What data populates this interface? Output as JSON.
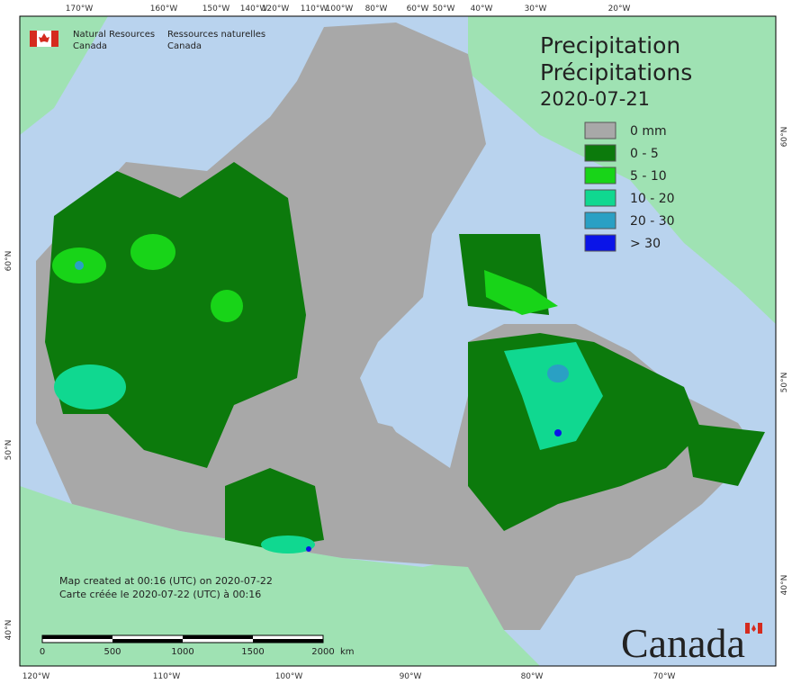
{
  "header": {
    "org_en": [
      "Natural Resources",
      "Canada"
    ],
    "org_fr": [
      "Ressources naturelles",
      "Canada"
    ]
  },
  "title": [
    "Precipitation",
    "Précipitations"
  ],
  "date": "2020-07-21",
  "legend": [
    {
      "label": "0 mm",
      "color": "#a8a8a8"
    },
    {
      "label": "0 - 5",
      "color": "#0c7a0c"
    },
    {
      "label": "5 - 10",
      "color": "#18d418"
    },
    {
      "label": "10 - 20",
      "color": "#10d890"
    },
    {
      "label": "20 - 30",
      "color": "#2aa0c4"
    },
    {
      "label": "> 30",
      "color": "#0a14e8"
    }
  ],
  "footer": [
    "Map created at 00:16 (UTC) on 2020-07-22",
    "Carte créée le 2020-07-22 (UTC) à 00:16"
  ],
  "scale_bar": {
    "labels": [
      "0",
      "500",
      "1000",
      "1500",
      "2000"
    ],
    "unit": "km"
  },
  "top_axis": [
    "170°W",
    "160°W",
    "150°W",
    "140°W",
    "120°W",
    "110°W",
    "100°W",
    "80°W",
    "60°W",
    "50°W",
    "40°W",
    "30°W",
    "20°W"
  ],
  "bottom_axis": [
    "120°W",
    "110°W",
    "100°W",
    "90°W",
    "80°W",
    "70°W"
  ],
  "left_axis": [
    "60°N",
    "50°N",
    "40°N"
  ],
  "right_axis": [
    "60°N",
    "50°N",
    "40°N"
  ],
  "wordmark": "Canada"
}
